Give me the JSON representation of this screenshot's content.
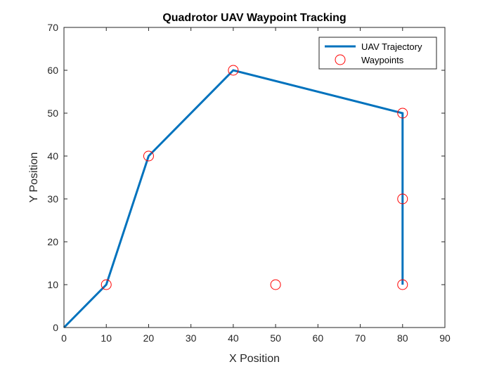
{
  "chart_data": {
    "type": "line",
    "title": "Quadrotor UAV Waypoint Tracking",
    "xlabel": "X Position",
    "ylabel": "Y Position",
    "xlim": [
      0,
      90
    ],
    "ylim": [
      0,
      70
    ],
    "xticks": [
      0,
      10,
      20,
      30,
      40,
      50,
      60,
      70,
      80,
      90
    ],
    "yticks": [
      0,
      10,
      20,
      30,
      40,
      50,
      60,
      70
    ],
    "grid": false,
    "legend_position": "top-right",
    "series": [
      {
        "name": "UAV Trajectory",
        "kind": "line",
        "color": "#0072BD",
        "x": [
          0,
          10,
          20,
          40,
          80,
          80,
          80
        ],
        "y": [
          0,
          10,
          40,
          60,
          50,
          30,
          10
        ]
      },
      {
        "name": "Waypoints",
        "kind": "marker",
        "marker": "circle",
        "color": "#FF0000",
        "x": [
          10,
          20,
          40,
          80,
          80,
          80,
          50
        ],
        "y": [
          10,
          40,
          60,
          50,
          30,
          10,
          10
        ]
      }
    ]
  }
}
